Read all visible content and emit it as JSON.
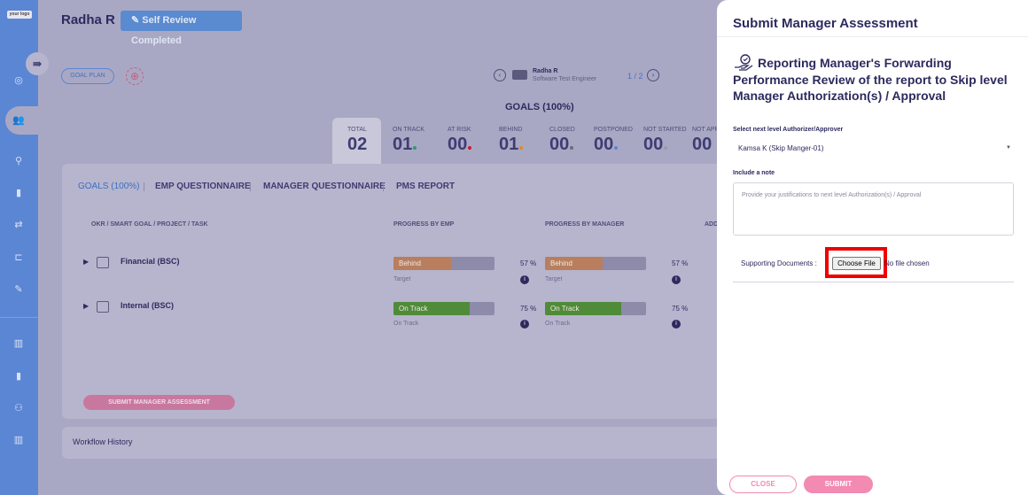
{
  "sidebar": {
    "logo": "your logo",
    "collapse_icon": "⇛"
  },
  "header": {
    "employee_name": "Radha R",
    "status_badge": "✎ Self Review Completed",
    "goal_plan_label": "GOAL PLAN"
  },
  "employee_nav": {
    "name": "Radha R",
    "role": "Software Test Engineer",
    "pager": "1 / 2"
  },
  "goals_summary": {
    "title": "GOALS (100%)",
    "stats": [
      {
        "label": "TOTAL",
        "value": "02",
        "dot_color": ""
      },
      {
        "label": "ON TRACK",
        "value": "01",
        "dot_color": "#2e9a6a"
      },
      {
        "label": "AT RISK",
        "value": "00",
        "dot_color": "#d11a2a"
      },
      {
        "label": "BEHIND",
        "value": "01",
        "dot_color": "#e08a20"
      },
      {
        "label": "CLOSED",
        "value": "00",
        "dot_color": "#6b6b80"
      },
      {
        "label": "POSTPONED",
        "value": "00",
        "dot_color": "#5a86d4"
      },
      {
        "label": "NOT STARTED",
        "value": "00",
        "dot_color": "#9a9aaa"
      },
      {
        "label": "NOT APP",
        "value": "00",
        "dot_color": ""
      }
    ]
  },
  "tabs": [
    "GOALS (100%)",
    "EMP QUESTIONNAIRE",
    "MANAGER QUESTIONNAIRE",
    "PMS REPORT"
  ],
  "table": {
    "columns": [
      "OKR / SMART GOAL / PROJECT / TASK",
      "PROGRESS BY EMP",
      "PROGRESS BY MANAGER",
      "ADD"
    ],
    "rows": [
      {
        "title": "Financial (BSC)",
        "emp": {
          "status": "Behind",
          "sub": "Target",
          "pct": "57  %",
          "fraction": 0.57,
          "color": "#b97e5e"
        },
        "mgr": {
          "status": "Behind",
          "sub": "Target",
          "pct": "57  %",
          "fraction": 0.57,
          "color": "#b97e5e"
        }
      },
      {
        "title": "Internal (BSC)",
        "emp": {
          "status": "On Track",
          "sub": "On Track",
          "pct": "75  %",
          "fraction": 0.75,
          "color": "#4f8b38"
        },
        "mgr": {
          "status": "On Track",
          "sub": "On Track",
          "pct": "75  %",
          "fraction": 0.75,
          "color": "#4f8b38"
        }
      }
    ]
  },
  "actions": {
    "submit_manager_assessment": "SUBMIT MANAGER ASSESSMENT",
    "workflow_history": "Workflow History"
  },
  "drawer": {
    "title": "Submit Manager Assessment",
    "heading": "Reporting Manager's Forwarding Performance Review of the report to Skip level Manager Authorization(s) / Approval",
    "authorizer_label": "Select next level Authorizer/Approver",
    "authorizer_value": "Kamsa K (Skip Manger-01)",
    "note_label": "Include a note",
    "note_placeholder": "Provide your justifications to next level Authorization(s) / Approval",
    "supporting_docs_label": "Supporting Documents :",
    "choose_file_label": "Choose File",
    "no_file_text": "No file chosen",
    "close_label": "CLOSE",
    "submit_label": "SUBMIT"
  }
}
